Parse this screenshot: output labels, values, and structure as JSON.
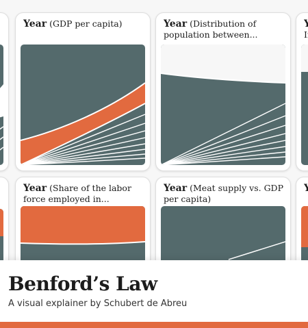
{
  "cards": [
    {
      "year_label": "Year",
      "subtitle": "(GDP per capita)"
    },
    {
      "year_label": "Year",
      "subtitle": "(Distribution of population between..."
    },
    {
      "year_label": "Year",
      "subtitle": "(Share of the labor force employed in..."
    },
    {
      "year_label": "Year",
      "subtitle": "(Meat supply vs. GDP per capita)"
    },
    {
      "year_label": "Ye",
      "subtitle": "In"
    },
    {
      "year_label": "Ye",
      "subtitle": ""
    }
  ],
  "header": {
    "title": "Benford’s Law",
    "subtitle": "A visual explainer by Schubert de Abreu"
  },
  "colors": {
    "accent": "#e26a3f",
    "plot_bg": "#546a6c",
    "line": "#ffffff"
  }
}
